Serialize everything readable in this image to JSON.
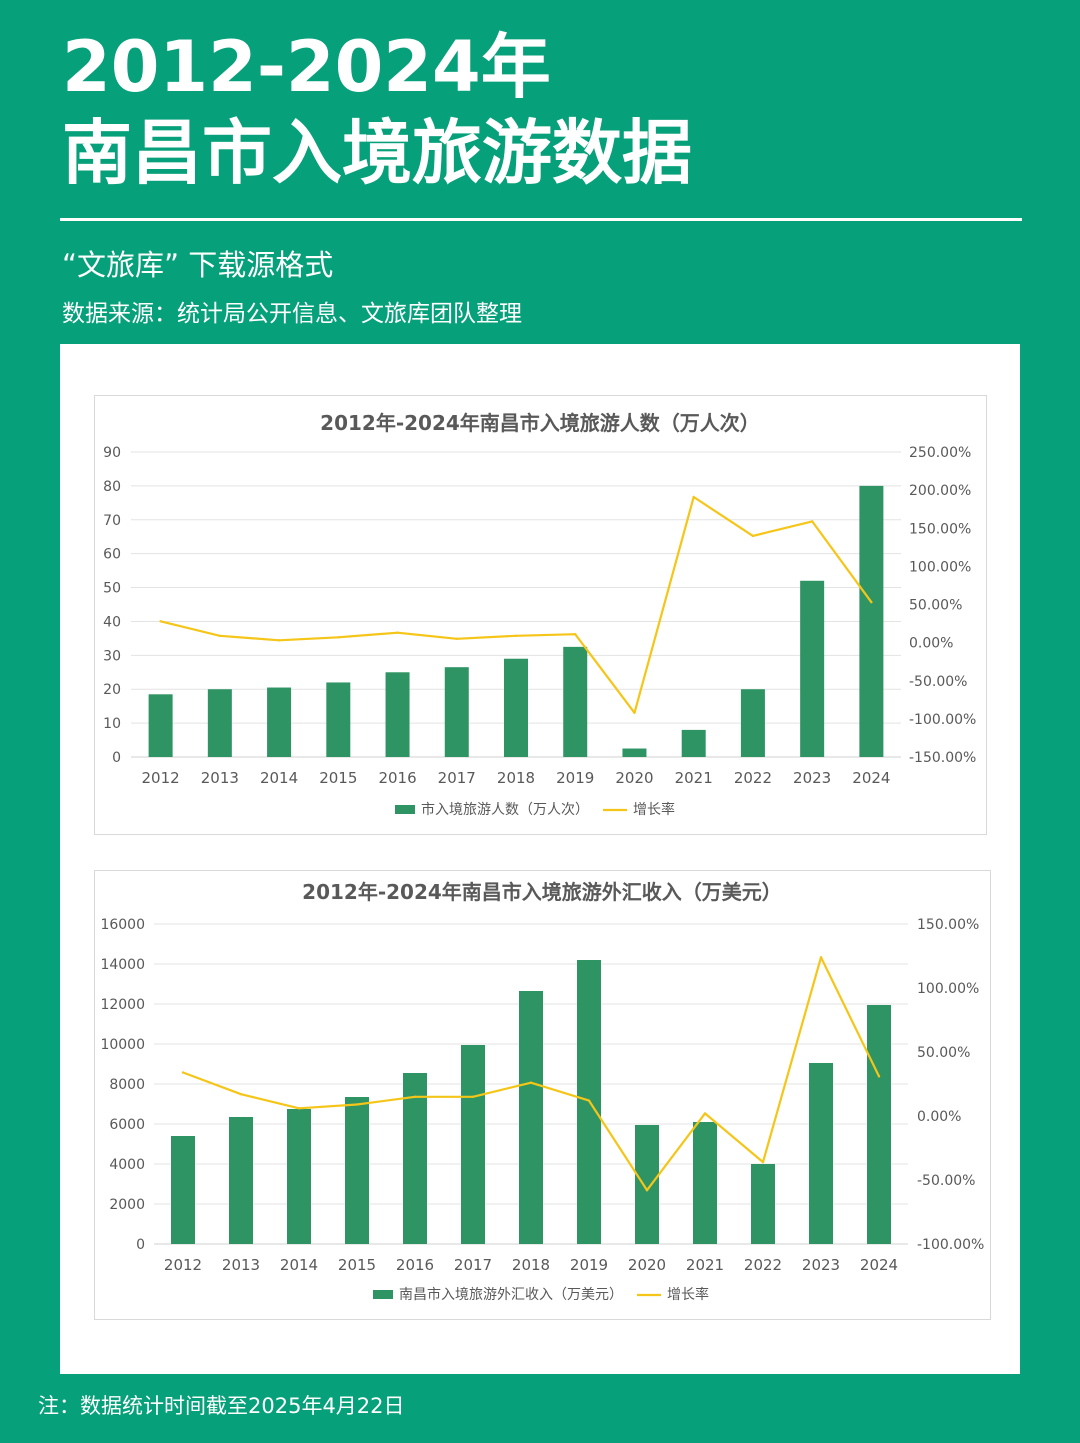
{
  "header": {
    "title_line1": "2012-2024年",
    "title_line2": "南昌市入境旅游数据",
    "subtitle": "“文旅库” 下载源格式",
    "source": "数据来源：统计局公开信息、文旅库团队整理"
  },
  "footer": {
    "note": "注：数据统计时间截至2025年4月22日"
  },
  "colors": {
    "background": "#06a07a",
    "bar": "#2e9464",
    "line": "#f5c518",
    "grid": "#e3e3e3",
    "text": "#595959"
  },
  "chart_data": [
    {
      "type": "bar",
      "title": "2012年-2024年南昌市入境旅游人数（万人次）",
      "categories": [
        "2012",
        "2013",
        "2014",
        "2015",
        "2016",
        "2017",
        "2018",
        "2019",
        "2020",
        "2021",
        "2022",
        "2023",
        "2024"
      ],
      "series": [
        {
          "name": "市入境旅游人数（万人次）",
          "type": "bar",
          "axis": "left",
          "values": [
            18.5,
            20,
            20.5,
            22,
            25,
            26.5,
            29,
            32.5,
            2.5,
            8,
            20,
            52,
            80
          ]
        },
        {
          "name": "增长率",
          "type": "line",
          "axis": "right",
          "values": [
            28,
            9,
            3,
            7,
            13,
            5,
            9,
            11,
            -92,
            191,
            140,
            159,
            53
          ]
        }
      ],
      "y_left": {
        "ylim": [
          0,
          90
        ],
        "ticks": [
          "0",
          "10",
          "20",
          "30",
          "40",
          "50",
          "60",
          "70",
          "80",
          "90"
        ]
      },
      "y_right": {
        "ylim": [
          -150,
          250
        ],
        "ticks": [
          "-150.00%",
          "-100.00%",
          "-50.00%",
          "0.00%",
          "50.00%",
          "100.00%",
          "150.00%",
          "200.00%",
          "250.00%"
        ]
      },
      "grid": true,
      "legend": "bottom"
    },
    {
      "type": "bar",
      "title": "2012年-2024年南昌市入境旅游外汇收入（万美元）",
      "categories": [
        "2012",
        "2013",
        "2014",
        "2015",
        "2016",
        "2017",
        "2018",
        "2019",
        "2020",
        "2021",
        "2022",
        "2023",
        "2024"
      ],
      "series": [
        {
          "name": "南昌市入境旅游外汇收入（万美元）",
          "type": "bar",
          "axis": "left",
          "values": [
            5400,
            6350,
            6750,
            7350,
            8550,
            9950,
            12650,
            14200,
            5950,
            6100,
            4000,
            9050,
            11950
          ]
        },
        {
          "name": "增长率",
          "type": "line",
          "axis": "right",
          "values": [
            34,
            17,
            6,
            9,
            15,
            15,
            26,
            12,
            -58,
            2,
            -36,
            124,
            31
          ]
        }
      ],
      "y_left": {
        "ylim": [
          0,
          16000
        ],
        "ticks": [
          "0",
          "2000",
          "4000",
          "6000",
          "8000",
          "10000",
          "12000",
          "14000",
          "16000"
        ]
      },
      "y_right": {
        "ylim": [
          -100,
          150
        ],
        "ticks": [
          "-100.00%",
          "-50.00%",
          "0.00%",
          "50.00%",
          "100.00%",
          "150.00%"
        ]
      },
      "grid": true,
      "legend": "bottom"
    }
  ]
}
